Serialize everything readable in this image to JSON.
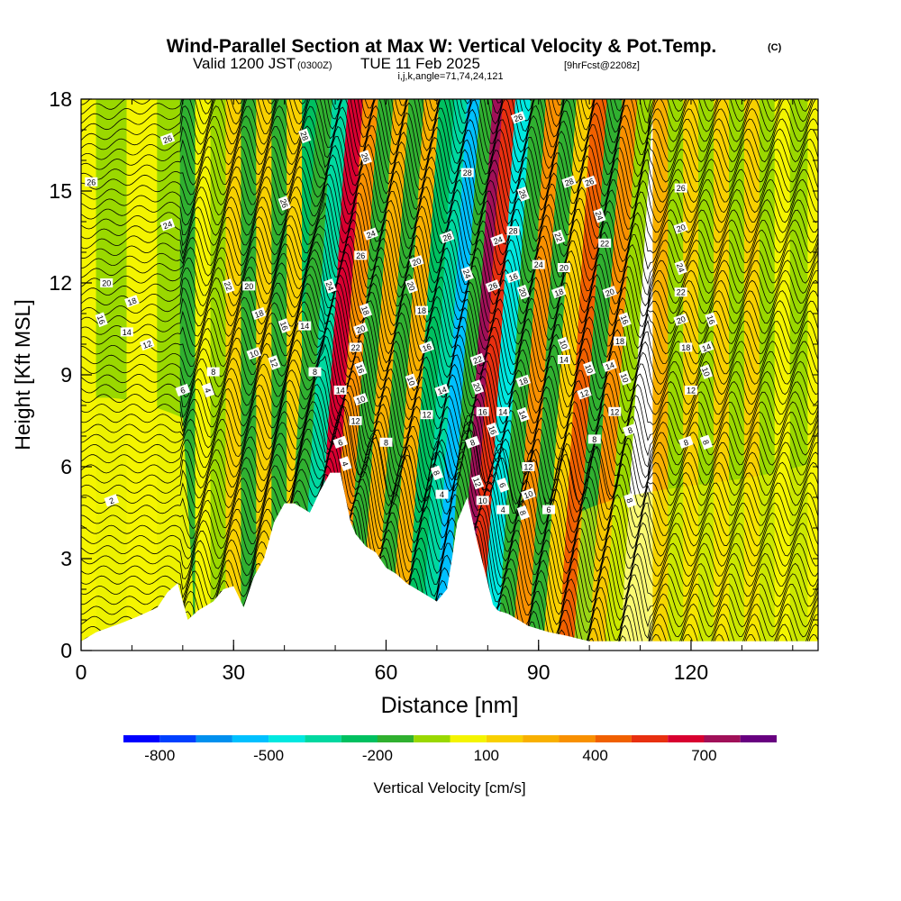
{
  "chart_data": {
    "type": "heatmap",
    "title": "Wind-Parallel Section at Max W: Vertical Velocity & Pot.Temp.",
    "title_mark": "(C)",
    "subtitle_main": "Valid 1200 JST",
    "subtitle_utc": "(0300Z)",
    "subtitle_date": "TUE 11 Feb 2025",
    "subtitle_fcst": "[9hrFcst@2208z]",
    "subtitle_indices": "i,j,k,angle=71,74,24,121",
    "xlabel": "Distance [nm]",
    "ylabel": "Height [Kft MSL]",
    "xlim": [
      0,
      145
    ],
    "ylim": [
      0,
      18
    ],
    "x_ticks": [
      0,
      30,
      60,
      90,
      120
    ],
    "y_ticks": [
      0,
      3,
      6,
      9,
      12,
      15,
      18
    ],
    "x_minor_step": 10,
    "y_minor_step": 1,
    "grid": false,
    "colorbar": {
      "label": "Vertical Velocity [cm/s]",
      "tick_values": [
        -800,
        -500,
        -200,
        100,
        400,
        700
      ],
      "tick_labels": [
        "-800",
        "-500",
        "-200",
        "100",
        "400",
        "700"
      ],
      "bins": [
        {
          "from": -900,
          "to": -800,
          "color": "#0000ff"
        },
        {
          "from": -800,
          "to": -700,
          "color": "#0040ff"
        },
        {
          "from": -700,
          "to": -600,
          "color": "#0090ee"
        },
        {
          "from": -600,
          "to": -500,
          "color": "#00c0ff"
        },
        {
          "from": -500,
          "to": -400,
          "color": "#00e8e0"
        },
        {
          "from": -400,
          "to": -300,
          "color": "#00d8a0"
        },
        {
          "from": -300,
          "to": -200,
          "color": "#00c060"
        },
        {
          "from": -200,
          "to": -100,
          "color": "#30b030"
        },
        {
          "from": -100,
          "to": 0,
          "color": "#9ad800"
        },
        {
          "from": 0,
          "to": 100,
          "color": "#f4f400"
        },
        {
          "from": 100,
          "to": 200,
          "color": "#f8d000"
        },
        {
          "from": 200,
          "to": 300,
          "color": "#f8b000"
        },
        {
          "from": 300,
          "to": 400,
          "color": "#f89000"
        },
        {
          "from": 400,
          "to": 500,
          "color": "#f06000"
        },
        {
          "from": 500,
          "to": 600,
          "color": "#e83010"
        },
        {
          "from": 600,
          "to": 700,
          "color": "#d80030"
        },
        {
          "from": 700,
          "to": 800,
          "color": "#a01058"
        },
        {
          "from": 800,
          "to": 900,
          "color": "#680080"
        }
      ]
    },
    "terrain_profile": {
      "x": [
        0,
        3,
        8,
        11,
        15,
        17,
        19,
        20,
        21,
        23,
        26,
        28,
        30,
        32,
        34,
        36,
        38,
        40,
        42,
        45,
        47,
        49,
        51,
        52,
        53,
        54,
        55,
        56,
        58,
        60,
        62,
        64,
        66,
        68,
        70,
        72,
        73,
        74,
        76,
        78,
        80,
        81,
        82,
        84,
        86,
        88,
        90,
        92,
        95,
        100,
        110,
        120,
        130,
        145
      ],
      "y": [
        0.3,
        0.6,
        0.9,
        1.1,
        1.4,
        1.9,
        2.2,
        1.6,
        1.0,
        1.3,
        1.6,
        2.0,
        2.1,
        1.4,
        2.4,
        3.0,
        4.2,
        4.8,
        4.8,
        4.5,
        5.2,
        5.8,
        5.8,
        5.0,
        4.2,
        3.8,
        3.6,
        3.4,
        3.2,
        2.7,
        2.5,
        2.2,
        2.0,
        1.8,
        1.6,
        2.0,
        3.0,
        4.2,
        5.0,
        3.5,
        2.2,
        1.5,
        1.3,
        1.2,
        1.0,
        0.8,
        0.7,
        0.6,
        0.5,
        0.3,
        0.3,
        0.3,
        0.3,
        0.3
      ]
    },
    "vertical_velocity_columns": [
      {
        "x": 0,
        "w": 20
      },
      {
        "x": 6,
        "w": -50
      },
      {
        "x": 12,
        "w": 30
      },
      {
        "x": 18,
        "w": -60
      },
      {
        "x": 21,
        "w": -150
      },
      {
        "x": 24,
        "w": 60
      },
      {
        "x": 27,
        "w": -80
      },
      {
        "x": 30,
        "w": 120
      },
      {
        "x": 33,
        "w": -110
      },
      {
        "x": 36,
        "w": 160
      },
      {
        "x": 39,
        "w": -130
      },
      {
        "x": 42,
        "w": 140
      },
      {
        "x": 45,
        "w": -260
      },
      {
        "x": 48,
        "w": -200
      },
      {
        "x": 51,
        "w": -320
      },
      {
        "x": 54,
        "w": 640
      },
      {
        "x": 57,
        "w": 300
      },
      {
        "x": 60,
        "w": -150
      },
      {
        "x": 63,
        "w": 200
      },
      {
        "x": 66,
        "w": -120
      },
      {
        "x": 69,
        "w": 250
      },
      {
        "x": 72,
        "w": -220
      },
      {
        "x": 75,
        "w": -360
      },
      {
        "x": 77,
        "w": -560
      },
      {
        "x": 80,
        "w": -150
      },
      {
        "x": 82,
        "w": 780
      },
      {
        "x": 84,
        "w": 520
      },
      {
        "x": 87,
        "w": -460
      },
      {
        "x": 90,
        "w": -180
      },
      {
        "x": 93,
        "w": 350
      },
      {
        "x": 96,
        "w": -160
      },
      {
        "x": 99,
        "w": 120
      },
      {
        "x": 102,
        "w": 420
      },
      {
        "x": 105,
        "w": -150
      },
      {
        "x": 108,
        "w": 300
      },
      {
        "x": 111,
        "w": -90
      },
      {
        "x": 114,
        "w": 200
      },
      {
        "x": 117,
        "w": -100
      },
      {
        "x": 120,
        "w": 180
      },
      {
        "x": 123,
        "w": -80
      },
      {
        "x": 126,
        "w": 160
      },
      {
        "x": 129,
        "w": -60
      },
      {
        "x": 132,
        "w": 120
      },
      {
        "x": 135,
        "w": -50
      },
      {
        "x": 138,
        "w": 80
      },
      {
        "x": 141,
        "w": -30
      },
      {
        "x": 145,
        "w": 20
      }
    ],
    "isentrope_labels": [
      {
        "text": "26",
        "x": 17,
        "y": 16.7
      },
      {
        "text": "28",
        "x": 44,
        "y": 16.8
      },
      {
        "text": "26",
        "x": 2,
        "y": 15.3
      },
      {
        "text": "24",
        "x": 17,
        "y": 13.9
      },
      {
        "text": "26",
        "x": 40,
        "y": 14.6
      },
      {
        "text": "20",
        "x": 5,
        "y": 12.0
      },
      {
        "text": "18",
        "x": 10,
        "y": 11.4
      },
      {
        "text": "16",
        "x": 4,
        "y": 10.8
      },
      {
        "text": "14",
        "x": 9,
        "y": 10.4
      },
      {
        "text": "12",
        "x": 13,
        "y": 10.0
      },
      {
        "text": "22",
        "x": 29,
        "y": 11.9
      },
      {
        "text": "20",
        "x": 33,
        "y": 11.9
      },
      {
        "text": "18",
        "x": 35,
        "y": 11.0
      },
      {
        "text": "16",
        "x": 40,
        "y": 10.6
      },
      {
        "text": "14",
        "x": 44,
        "y": 10.6
      },
      {
        "text": "10",
        "x": 34,
        "y": 9.7
      },
      {
        "text": "12",
        "x": 38,
        "y": 9.4
      },
      {
        "text": "8",
        "x": 26,
        "y": 9.1
      },
      {
        "text": "6",
        "x": 20,
        "y": 8.5
      },
      {
        "text": "4",
        "x": 25,
        "y": 8.5
      },
      {
        "text": "8",
        "x": 46,
        "y": 9.1
      },
      {
        "text": "2",
        "x": 6,
        "y": 4.9
      },
      {
        "text": "24",
        "x": 49,
        "y": 11.9
      },
      {
        "text": "14",
        "x": 51,
        "y": 8.5
      },
      {
        "text": "6",
        "x": 51,
        "y": 6.8
      },
      {
        "text": "4",
        "x": 52,
        "y": 6.1
      },
      {
        "text": "12",
        "x": 54,
        "y": 7.5
      },
      {
        "text": "10",
        "x": 55,
        "y": 8.2
      },
      {
        "text": "16",
        "x": 55,
        "y": 9.2
      },
      {
        "text": "22",
        "x": 54,
        "y": 9.9
      },
      {
        "text": "20",
        "x": 55,
        "y": 10.5
      },
      {
        "text": "18",
        "x": 56,
        "y": 11.1
      },
      {
        "text": "26",
        "x": 55,
        "y": 12.9
      },
      {
        "text": "24",
        "x": 57,
        "y": 13.6
      },
      {
        "text": "26",
        "x": 56,
        "y": 16.1
      },
      {
        "text": "8",
        "x": 60,
        "y": 6.8
      },
      {
        "text": "20",
        "x": 66,
        "y": 12.7
      },
      {
        "text": "20",
        "x": 65,
        "y": 11.9
      },
      {
        "text": "18",
        "x": 67,
        "y": 11.1
      },
      {
        "text": "16",
        "x": 68,
        "y": 9.9
      },
      {
        "text": "10",
        "x": 65,
        "y": 8.8
      },
      {
        "text": "12",
        "x": 68,
        "y": 7.7
      },
      {
        "text": "14",
        "x": 71,
        "y": 8.5
      },
      {
        "text": "8",
        "x": 70,
        "y": 5.8
      },
      {
        "text": "4",
        "x": 71,
        "y": 5.1
      },
      {
        "text": "28",
        "x": 72,
        "y": 13.5
      },
      {
        "text": "24",
        "x": 76,
        "y": 12.3
      },
      {
        "text": "28",
        "x": 76,
        "y": 15.6
      },
      {
        "text": "22",
        "x": 78,
        "y": 9.5
      },
      {
        "text": "20",
        "x": 78,
        "y": 8.6
      },
      {
        "text": "16",
        "x": 79,
        "y": 7.8
      },
      {
        "text": "8",
        "x": 77,
        "y": 6.8
      },
      {
        "text": "12",
        "x": 78,
        "y": 5.5
      },
      {
        "text": "10",
        "x": 79,
        "y": 4.9
      },
      {
        "text": "26",
        "x": 81,
        "y": 11.9
      },
      {
        "text": "16",
        "x": 81,
        "y": 7.2
      },
      {
        "text": "14",
        "x": 83,
        "y": 7.8
      },
      {
        "text": "24",
        "x": 82,
        "y": 13.4
      },
      {
        "text": "6",
        "x": 83,
        "y": 5.4
      },
      {
        "text": "4",
        "x": 83,
        "y": 4.6
      },
      {
        "text": "26",
        "x": 86,
        "y": 17.4
      },
      {
        "text": "26",
        "x": 87,
        "y": 14.9
      },
      {
        "text": "28",
        "x": 85,
        "y": 13.7
      },
      {
        "text": "16",
        "x": 85,
        "y": 12.2
      },
      {
        "text": "20",
        "x": 87,
        "y": 11.7
      },
      {
        "text": "24",
        "x": 90,
        "y": 12.6
      },
      {
        "text": "18",
        "x": 87,
        "y": 8.8
      },
      {
        "text": "14",
        "x": 87,
        "y": 7.7
      },
      {
        "text": "12",
        "x": 88,
        "y": 6.0
      },
      {
        "text": "10",
        "x": 88,
        "y": 5.1
      },
      {
        "text": "8",
        "x": 87,
        "y": 4.5
      },
      {
        "text": "6",
        "x": 92,
        "y": 4.6
      },
      {
        "text": "28",
        "x": 96,
        "y": 15.3
      },
      {
        "text": "22",
        "x": 94,
        "y": 13.5
      },
      {
        "text": "20",
        "x": 95,
        "y": 12.5
      },
      {
        "text": "18",
        "x": 94,
        "y": 11.7
      },
      {
        "text": "10",
        "x": 95,
        "y": 10.0
      },
      {
        "text": "14",
        "x": 95,
        "y": 9.5
      },
      {
        "text": "12",
        "x": 99,
        "y": 8.4
      },
      {
        "text": "10",
        "x": 100,
        "y": 9.2
      },
      {
        "text": "8",
        "x": 101,
        "y": 6.9
      },
      {
        "text": "26",
        "x": 100,
        "y": 15.3
      },
      {
        "text": "24",
        "x": 102,
        "y": 14.2
      },
      {
        "text": "22",
        "x": 103,
        "y": 13.3
      },
      {
        "text": "20",
        "x": 104,
        "y": 11.7
      },
      {
        "text": "16",
        "x": 107,
        "y": 10.8
      },
      {
        "text": "18",
        "x": 106,
        "y": 10.1
      },
      {
        "text": "14",
        "x": 104,
        "y": 9.3
      },
      {
        "text": "10",
        "x": 107,
        "y": 8.9
      },
      {
        "text": "12",
        "x": 105,
        "y": 7.8
      },
      {
        "text": "8",
        "x": 108,
        "y": 7.2
      },
      {
        "text": "8",
        "x": 108,
        "y": 4.9
      },
      {
        "text": "26",
        "x": 118,
        "y": 15.1
      },
      {
        "text": "20",
        "x": 118,
        "y": 13.8
      },
      {
        "text": "24",
        "x": 118,
        "y": 12.5
      },
      {
        "text": "22",
        "x": 118,
        "y": 11.7
      },
      {
        "text": "20",
        "x": 118,
        "y": 10.8
      },
      {
        "text": "16",
        "x": 124,
        "y": 10.8
      },
      {
        "text": "18",
        "x": 119,
        "y": 9.9
      },
      {
        "text": "14",
        "x": 123,
        "y": 9.9
      },
      {
        "text": "10",
        "x": 123,
        "y": 9.1
      },
      {
        "text": "12",
        "x": 120,
        "y": 8.5
      },
      {
        "text": "8",
        "x": 119,
        "y": 6.8
      },
      {
        "text": "8",
        "x": 123,
        "y": 6.8
      }
    ]
  }
}
